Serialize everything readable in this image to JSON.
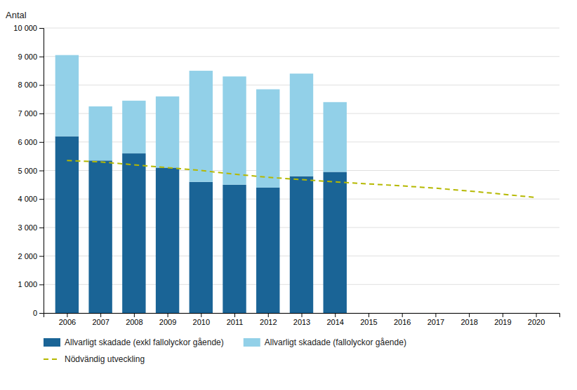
{
  "chart_data": {
    "type": "bar",
    "stacked": true,
    "y_label": "Antal",
    "xlim": [
      2005.3,
      2020.7
    ],
    "xticks": [
      2006,
      2007,
      2008,
      2009,
      2010,
      2011,
      2012,
      2013,
      2014,
      2015,
      2016,
      2017,
      2018,
      2019,
      2020
    ],
    "ylim": [
      0,
      10000
    ],
    "yticks": [
      0,
      {
        "value": 1000,
        "label": "1 000"
      },
      {
        "value": 2000,
        "label": "2 000"
      },
      {
        "value": 3000,
        "label": "3 000"
      },
      {
        "value": 4000,
        "label": "4 000"
      },
      {
        "value": 5000,
        "label": "5 000"
      },
      {
        "value": 6000,
        "label": "6 000"
      },
      {
        "value": 7000,
        "label": "7 000"
      },
      {
        "value": 8000,
        "label": "8 000"
      },
      {
        "value": 9000,
        "label": "9 000"
      },
      {
        "value": 10000,
        "label": "10 000"
      }
    ],
    "grid": true,
    "legend": "bottom",
    "series": [
      {
        "name": "Allvarligt skadade (exkl fallolyckor gående)",
        "type": "bar",
        "color": "#1a6496",
        "x": [
          2006,
          2007,
          2008,
          2009,
          2010,
          2011,
          2012,
          2013,
          2014
        ],
        "values": [
          6200,
          5350,
          5600,
          5100,
          4600,
          4500,
          4400,
          4800,
          4950
        ]
      },
      {
        "name": "Allvarligt skadade (fallolyckor gående)",
        "type": "bar",
        "color": "#92d0e8",
        "x": [
          2006,
          2007,
          2008,
          2009,
          2010,
          2011,
          2012,
          2013,
          2014
        ],
        "values": [
          2850,
          1900,
          1850,
          2500,
          3900,
          3800,
          3450,
          3600,
          2450
        ]
      },
      {
        "name": "Nödvändig utveckling",
        "type": "line",
        "line_style": "dashed",
        "color": "#b5b800",
        "x": [
          2006,
          2007,
          2008,
          2009,
          2010,
          2011,
          2012,
          2013,
          2014,
          2015,
          2016,
          2017,
          2018,
          2019,
          2020
        ],
        "values": [
          5350,
          5300,
          5200,
          5100,
          5000,
          4870,
          4760,
          4680,
          4600,
          4530,
          4460,
          4380,
          4280,
          4170,
          4050
        ]
      }
    ]
  }
}
